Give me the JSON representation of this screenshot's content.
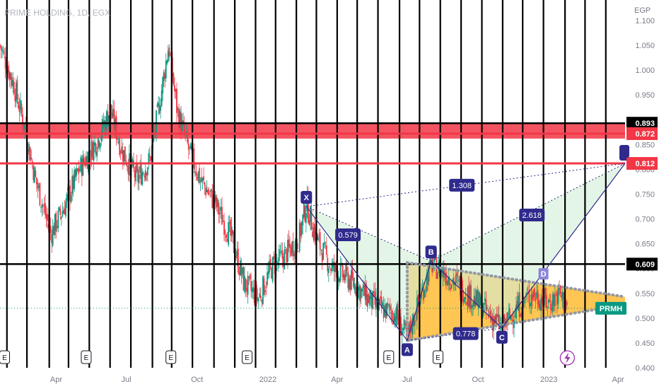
{
  "chart_data": {
    "type": "candlestick",
    "title": "PRIME HOLDING, 1D, EGX",
    "currency": "EGP",
    "symbol_tag": "PRMH",
    "last_price": 0.52,
    "y_range": [
      0.4,
      1.13
    ],
    "y_ticks": [
      "1.100",
      "1.050",
      "1.000",
      "0.950",
      "0.900",
      "0.850",
      "0.800",
      "0.750",
      "0.700",
      "0.650",
      "0.600",
      "0.550",
      "0.500",
      "0.450",
      "0.400"
    ],
    "x_ticks": [
      {
        "label": "Apr",
        "t": "2021-04-01"
      },
      {
        "label": "Jul",
        "t": "2021-07-01"
      },
      {
        "label": "Oct",
        "t": "2021-10-01"
      },
      {
        "label": "2022",
        "t": "2022-01-01"
      },
      {
        "label": "Apr",
        "t": "2022-04-01"
      },
      {
        "label": "Jul",
        "t": "2022-07-01"
      },
      {
        "label": "Oct",
        "t": "2022-10-01"
      },
      {
        "label": "2023",
        "t": "2023-01-01"
      },
      {
        "label": "Apr",
        "t": "2023-04-01"
      }
    ],
    "x_range": [
      "2021-01-18",
      "2023-04-10"
    ],
    "price_path": [
      [
        "2021-01-18",
        1.05
      ],
      [
        "2021-02-05",
        0.97
      ],
      [
        "2021-02-20",
        0.88
      ],
      [
        "2021-03-05",
        0.78
      ],
      [
        "2021-03-25",
        0.67
      ],
      [
        "2021-04-10",
        0.72
      ],
      [
        "2021-05-01",
        0.8
      ],
      [
        "2021-05-25",
        0.86
      ],
      [
        "2021-06-10",
        0.92
      ],
      [
        "2021-06-25",
        0.84
      ],
      [
        "2021-07-15",
        0.78
      ],
      [
        "2021-08-01",
        0.82
      ],
      [
        "2021-08-15",
        0.95
      ],
      [
        "2021-08-25",
        1.05
      ],
      [
        "2021-09-05",
        0.92
      ],
      [
        "2021-09-20",
        0.84
      ],
      [
        "2021-10-05",
        0.78
      ],
      [
        "2021-10-25",
        0.73
      ],
      [
        "2021-11-15",
        0.66
      ],
      [
        "2021-12-01",
        0.57
      ],
      [
        "2021-12-20",
        0.54
      ],
      [
        "2022-01-05",
        0.6
      ],
      [
        "2022-01-25",
        0.63
      ],
      [
        "2022-02-10",
        0.66
      ],
      [
        "2022-02-20",
        0.73
      ],
      [
        "2022-03-05",
        0.66
      ],
      [
        "2022-03-25",
        0.6
      ],
      [
        "2022-04-15",
        0.58
      ],
      [
        "2022-05-05",
        0.55
      ],
      [
        "2022-05-25",
        0.52
      ],
      [
        "2022-06-15",
        0.51
      ],
      [
        "2022-07-01",
        0.46
      ],
      [
        "2022-07-20",
        0.55
      ],
      [
        "2022-08-01",
        0.61
      ],
      [
        "2022-08-20",
        0.59
      ],
      [
        "2022-09-10",
        0.56
      ],
      [
        "2022-10-01",
        0.53
      ],
      [
        "2022-10-20",
        0.5
      ],
      [
        "2022-11-01",
        0.48
      ],
      [
        "2022-11-20",
        0.52
      ],
      [
        "2022-12-10",
        0.55
      ],
      [
        "2023-01-01",
        0.53
      ],
      [
        "2023-01-15",
        0.55
      ],
      [
        "2023-01-25",
        0.52
      ]
    ],
    "horizontal_levels": [
      {
        "value": 0.893,
        "label": "0.893",
        "color": "#000000"
      },
      {
        "value": 0.872,
        "label": "0.872",
        "color": "#f23645"
      },
      {
        "value": 0.812,
        "label": "0.812",
        "color": "#f23645"
      },
      {
        "value": 0.609,
        "label": "0.609",
        "color": "#000000"
      }
    ],
    "red_band": [
      0.862,
      0.893
    ],
    "harmonic_pattern": {
      "points": [
        {
          "label": "X",
          "t": "2022-02-20",
          "v": 0.725,
          "place": "above"
        },
        {
          "label": "A",
          "t": "2022-07-01",
          "v": 0.455,
          "place": "below"
        },
        {
          "label": "B",
          "t": "2022-08-01",
          "v": 0.615,
          "place": "above"
        },
        {
          "label": "C",
          "t": "2022-11-01",
          "v": 0.48,
          "place": "below"
        },
        {
          "label": "D",
          "t": "2023-04-10",
          "v": 0.812,
          "place": "above"
        }
      ],
      "ratios": [
        {
          "label": "0.579",
          "t": "2022-04-15",
          "v": 0.668
        },
        {
          "label": "1.308",
          "t": "2022-09-10",
          "v": 0.768
        },
        {
          "label": "2.618",
          "t": "2022-12-10",
          "v": 0.708
        },
        {
          "label": "0.778",
          "t": "2022-09-15",
          "v": 0.469
        }
      ]
    },
    "triangle": {
      "upper": [
        [
          "2022-07-01",
          0.612
        ],
        [
          "2023-04-10",
          0.543
        ]
      ],
      "lower": [
        [
          "2022-07-01",
          0.455
        ],
        [
          "2023-04-10",
          0.527
        ]
      ],
      "small_marker": {
        "label": "D",
        "t": "2022-12-25",
        "v": 0.588
      }
    },
    "earnings_markers": [
      {
        "label": "E",
        "t": "2021-01-24"
      },
      {
        "label": "E",
        "t": "2021-05-10"
      },
      {
        "label": "E",
        "t": "2021-08-28"
      },
      {
        "label": "E",
        "t": "2021-12-05"
      },
      {
        "label": "E",
        "t": "2022-06-07"
      },
      {
        "label": "E",
        "t": "2022-08-10"
      }
    ],
    "vertical_lines": [
      "2021-01-27",
      "2021-02-22",
      "2021-03-23",
      "2021-04-17",
      "2021-05-14",
      "2021-06-10",
      "2021-07-07",
      "2021-08-04",
      "2021-08-29",
      "2021-09-25",
      "2021-10-23",
      "2021-11-19",
      "2021-12-16",
      "2022-01-11",
      "2022-02-07",
      "2022-03-05",
      "2022-04-01",
      "2022-04-27",
      "2022-05-24",
      "2022-06-21",
      "2022-07-17",
      "2022-08-13",
      "2022-09-09",
      "2022-10-06",
      "2022-11-02",
      "2022-11-28",
      "2022-12-25",
      "2023-01-22",
      "2023-02-17",
      "2023-03-16"
    ],
    "grid": false
  }
}
